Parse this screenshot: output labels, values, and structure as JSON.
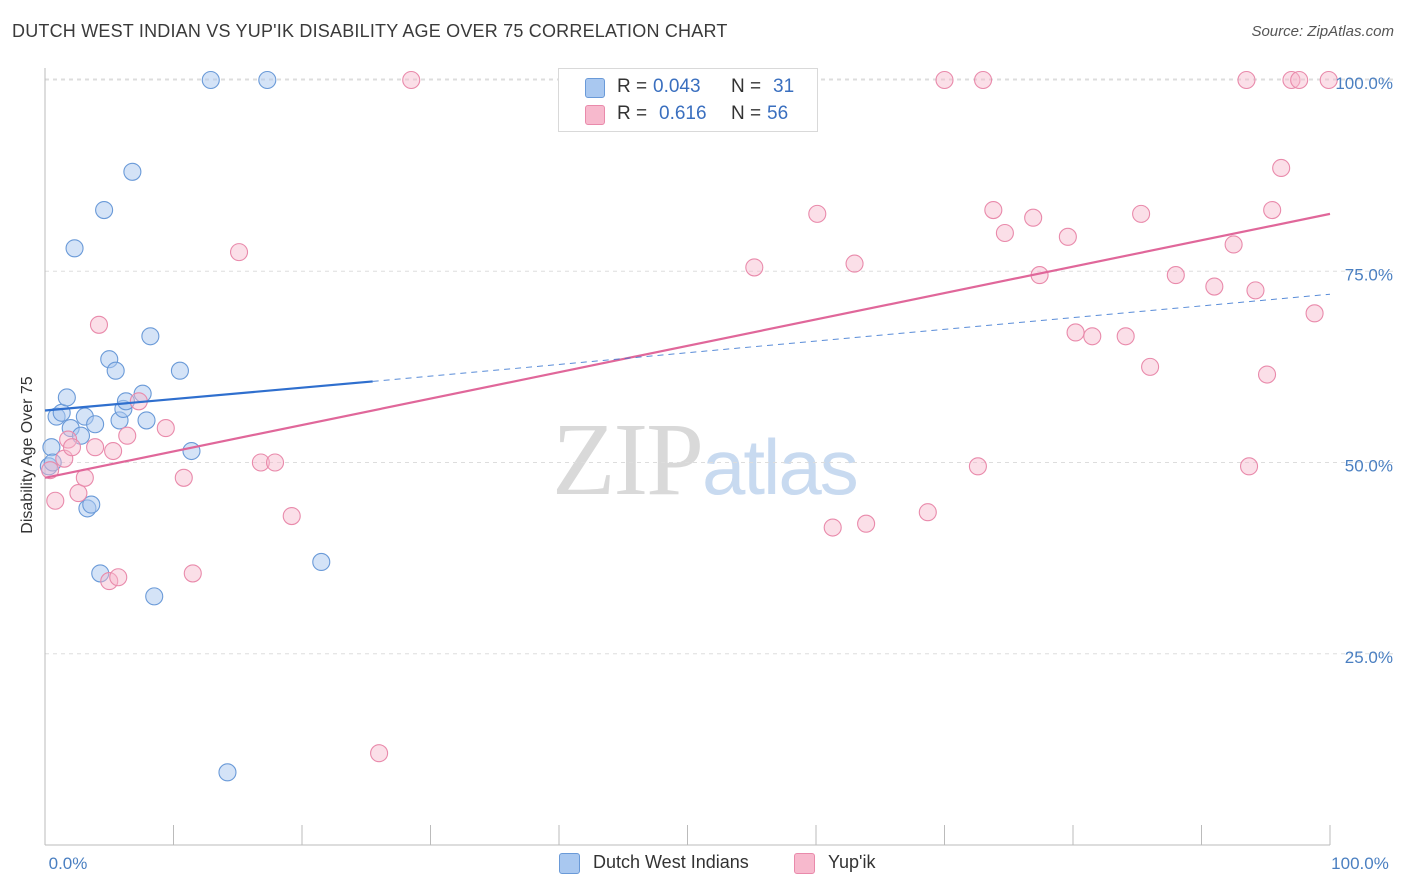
{
  "header": {
    "title": "DUTCH WEST INDIAN VS YUP'IK DISABILITY AGE OVER 75 CORRELATION CHART",
    "source": "Source: ZipAtlas.com"
  },
  "watermark": {
    "zip": "ZIP",
    "atlas": "atlas"
  },
  "legend": {
    "r_label": "R =",
    "n_label": "N =",
    "rows": [
      {
        "r": "0.043",
        "n": "31",
        "fill": "#a9c8f0",
        "stroke": "#6a9ad8"
      },
      {
        "r": "0.616",
        "n": "56",
        "fill": "#f7b9cd",
        "stroke": "#e98aab"
      }
    ]
  },
  "bottom_legend": [
    {
      "label": "Dutch West Indians",
      "fill": "#a9c8f0",
      "stroke": "#6a9ad8"
    },
    {
      "label": "Yup'ik",
      "fill": "#f7b9cd",
      "stroke": "#e98aab"
    }
  ],
  "colors": {
    "blue_fill": "#a9c8f0",
    "blue_stroke": "#6a9ad8",
    "blue_line": "#2f6fce",
    "pink_fill": "#f7b9cd",
    "pink_stroke": "#e98aab",
    "pink_line": "#e0679a",
    "grid": "#dddddd",
    "axis": "#bbbbbb",
    "tick_text": "#4a7fc1"
  },
  "chart_data": {
    "type": "scatter",
    "title": "DUTCH WEST INDIAN VS YUP'IK DISABILITY AGE OVER 75 CORRELATION CHART",
    "xlabel": "",
    "ylabel": "Disability Age Over 75",
    "xlim": [
      0,
      100
    ],
    "ylim": [
      0,
      102
    ],
    "x_tick_labels": [
      "0.0%",
      "100.0%"
    ],
    "y_ticks": [
      25,
      50,
      75,
      100
    ],
    "y_tick_labels": [
      "25.0%",
      "50.0%",
      "75.0%",
      "100.0%"
    ],
    "grid": true,
    "legend_position": "top-center",
    "series": [
      {
        "name": "Dutch West Indians",
        "R": 0.043,
        "N": 31,
        "points": [
          [
            0.5,
            52.0
          ],
          [
            0.9,
            56.0
          ],
          [
            1.3,
            56.5
          ],
          [
            1.7,
            58.5
          ],
          [
            2.0,
            54.5
          ],
          [
            2.3,
            78.0
          ],
          [
            2.8,
            53.5
          ],
          [
            3.1,
            56.0
          ],
          [
            3.3,
            44.0
          ],
          [
            3.6,
            44.5
          ],
          [
            3.9,
            55.0
          ],
          [
            4.3,
            35.5
          ],
          [
            4.6,
            83.0
          ],
          [
            5.0,
            63.5
          ],
          [
            5.5,
            62.0
          ],
          [
            5.8,
            55.5
          ],
          [
            6.1,
            57.0
          ],
          [
            6.3,
            58.0
          ],
          [
            6.8,
            88.0
          ],
          [
            7.6,
            59.0
          ],
          [
            7.9,
            55.5
          ],
          [
            8.2,
            66.5
          ],
          [
            8.5,
            32.5
          ],
          [
            10.5,
            62.0
          ],
          [
            11.4,
            51.5
          ],
          [
            12.9,
            100.0
          ],
          [
            14.2,
            9.5
          ],
          [
            17.3,
            100.0
          ],
          [
            21.5,
            37.0
          ],
          [
            0.3,
            49.5
          ],
          [
            0.6,
            50.0
          ]
        ],
        "trend_solid": {
          "x": [
            0,
            25.5
          ],
          "y": [
            56.8,
            60.6
          ]
        },
        "trend_dashed": {
          "x": [
            25.5,
            100
          ],
          "y": [
            60.6,
            72.0
          ]
        }
      },
      {
        "name": "Yup'ik",
        "R": 0.616,
        "N": 56,
        "points": [
          [
            0.4,
            49.0
          ],
          [
            0.8,
            45.0
          ],
          [
            1.5,
            50.5
          ],
          [
            1.8,
            53.0
          ],
          [
            2.1,
            52.0
          ],
          [
            2.6,
            46.0
          ],
          [
            3.1,
            48.0
          ],
          [
            3.9,
            52.0
          ],
          [
            4.2,
            68.0
          ],
          [
            5.0,
            34.5
          ],
          [
            5.3,
            51.5
          ],
          [
            5.7,
            35.0
          ],
          [
            6.4,
            53.5
          ],
          [
            7.3,
            58.0
          ],
          [
            9.4,
            54.5
          ],
          [
            10.8,
            48.0
          ],
          [
            11.5,
            35.5
          ],
          [
            15.1,
            77.5
          ],
          [
            16.8,
            50.0
          ],
          [
            17.9,
            50.0
          ],
          [
            19.2,
            43.0
          ],
          [
            26.0,
            12.0
          ],
          [
            28.5,
            100.0
          ],
          [
            55.2,
            75.5
          ],
          [
            58.2,
            100.0
          ],
          [
            60.1,
            82.5
          ],
          [
            61.3,
            41.5
          ],
          [
            63.0,
            76.0
          ],
          [
            63.9,
            42.0
          ],
          [
            68.7,
            43.5
          ],
          [
            70.0,
            100.0
          ],
          [
            72.6,
            49.5
          ],
          [
            73.0,
            100.0
          ],
          [
            73.8,
            83.0
          ],
          [
            74.7,
            80.0
          ],
          [
            76.9,
            82.0
          ],
          [
            77.4,
            74.5
          ],
          [
            79.6,
            79.5
          ],
          [
            80.2,
            67.0
          ],
          [
            81.5,
            66.5
          ],
          [
            84.1,
            66.5
          ],
          [
            85.3,
            82.5
          ],
          [
            86.0,
            62.5
          ],
          [
            88.0,
            74.5
          ],
          [
            91.0,
            73.0
          ],
          [
            92.5,
            78.5
          ],
          [
            93.5,
            100.0
          ],
          [
            93.7,
            49.5
          ],
          [
            94.2,
            72.5
          ],
          [
            95.1,
            61.5
          ],
          [
            95.5,
            83.0
          ],
          [
            96.2,
            88.5
          ],
          [
            97.0,
            100.0
          ],
          [
            97.6,
            100.0
          ],
          [
            98.8,
            69.5
          ],
          [
            99.9,
            100.0
          ]
        ],
        "trend_solid": {
          "x": [
            0,
            100
          ],
          "y": [
            48.0,
            82.5
          ]
        }
      }
    ]
  }
}
